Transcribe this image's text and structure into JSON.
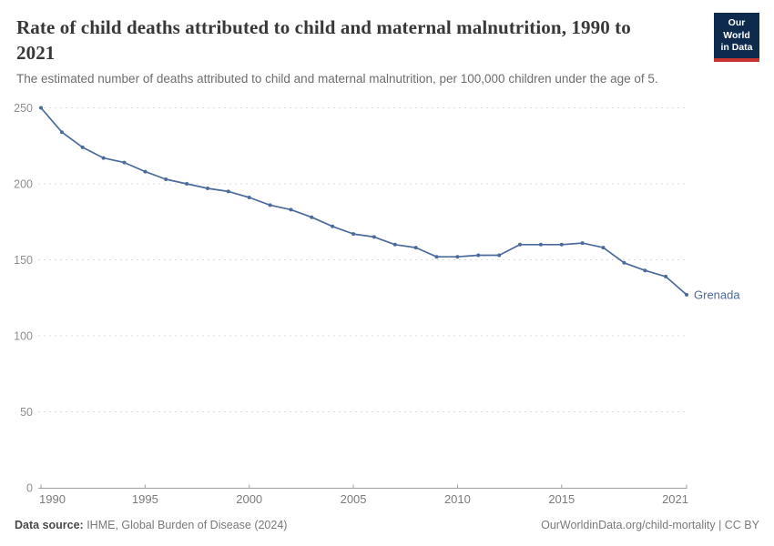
{
  "header": {
    "title": "Rate of child deaths attributed to child and maternal malnutrition, 1990 to 2021",
    "subtitle": "The estimated number of deaths attributed to child and maternal malnutrition, per 100,000 children under the age of 5.",
    "logo": {
      "line1": "Our World",
      "line2": "in Data",
      "bg_color": "#0e2a4d",
      "stripe_color": "#c7342d"
    }
  },
  "chart_data": {
    "type": "line",
    "title": "Rate of child deaths attributed to child and maternal malnutrition, 1990 to 2021",
    "x": [
      1990,
      1991,
      1992,
      1993,
      1994,
      1995,
      1996,
      1997,
      1998,
      1999,
      2000,
      2001,
      2002,
      2003,
      2004,
      2005,
      2006,
      2007,
      2008,
      2009,
      2010,
      2011,
      2012,
      2013,
      2014,
      2015,
      2016,
      2017,
      2018,
      2019,
      2020,
      2021
    ],
    "series": [
      {
        "name": "Grenada",
        "color": "#4c6a9c",
        "values": [
          250,
          234,
          224,
          217,
          214,
          208,
          203,
          200,
          197,
          195,
          191,
          186,
          183,
          178,
          172,
          167,
          165,
          160,
          158,
          152,
          152,
          153,
          153,
          160,
          160,
          160,
          161,
          158,
          148,
          143,
          139,
          127
        ]
      }
    ],
    "xlabel": "",
    "ylabel": "",
    "xlim": [
      1990,
      2021
    ],
    "ylim": [
      0,
      250
    ],
    "x_ticks": [
      1990,
      1995,
      2000,
      2005,
      2010,
      2015,
      2021
    ],
    "y_ticks": [
      0,
      50,
      100,
      150,
      200,
      250
    ],
    "grid": "horizontal-dashed",
    "legend": "line-end-label",
    "markers": true
  },
  "footer": {
    "source_label": "Data source:",
    "source_text": " IHME, Global Burden of Disease (2024)",
    "credit": "OurWorldinData.org/child-mortality | CC BY"
  },
  "colors": {
    "line": "#4c6a9c",
    "grid": "#dcdcdc",
    "axis": "#a0a0a0",
    "y_tick_label": "#8f8f8f",
    "x_tick_label": "#7b7b7b",
    "title": "#383838",
    "subtitle": "#6e6e6e"
  }
}
